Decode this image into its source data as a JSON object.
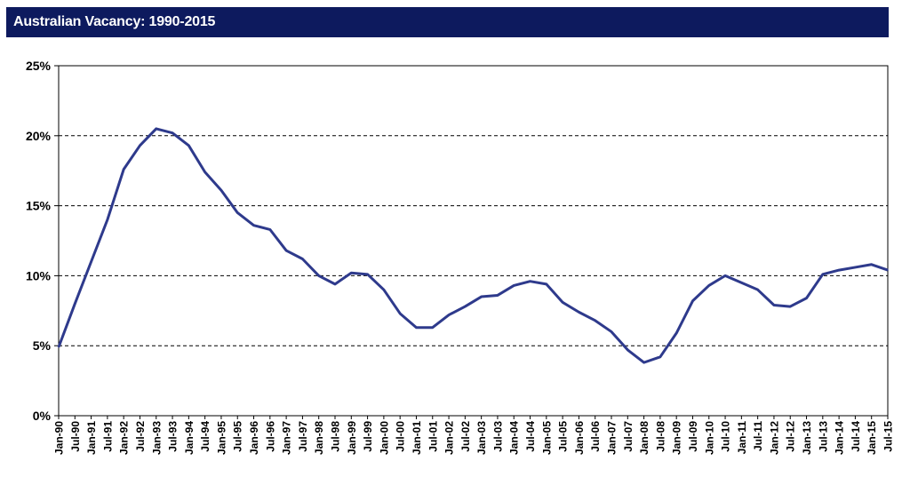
{
  "header": {
    "title": "Australian Vacancy: 1990-2015"
  },
  "chart_data": {
    "type": "line",
    "title": "Australian Vacancy: 1990-2015",
    "xlabel": "",
    "ylabel": "",
    "ylim": [
      0,
      25
    ],
    "yticks": [
      "0%",
      "5%",
      "10%",
      "15%",
      "20%",
      "25%"
    ],
    "ytick_values": [
      0,
      5,
      10,
      15,
      20,
      25
    ],
    "grid": "horizontal dashed",
    "line_color": "#2e3a8c",
    "categories": [
      "Jan-90",
      "Jul-90",
      "Jan-91",
      "Jul-91",
      "Jan-92",
      "Jul-92",
      "Jan-93",
      "Jul-93",
      "Jan-94",
      "Jul-94",
      "Jan-95",
      "Jul-95",
      "Jan-96",
      "Jul-96",
      "Jan-97",
      "Jul-97",
      "Jan-98",
      "Jul-98",
      "Jan-99",
      "Jul-99",
      "Jan-00",
      "Jul-00",
      "Jan-01",
      "Jul-01",
      "Jan-02",
      "Jul-02",
      "Jan-03",
      "Jul-03",
      "Jan-04",
      "Jul-04",
      "Jan-05",
      "Jul-05",
      "Jan-06",
      "Jul-06",
      "Jan-07",
      "Jul-07",
      "Jan-08",
      "Jul-08",
      "Jan-09",
      "Jul-09",
      "Jan-10",
      "Jul-10",
      "Jan-11",
      "Jul-11",
      "Jan-12",
      "Jul-12",
      "Jan-13",
      "Jul-13",
      "Jan-14",
      "Jul-14",
      "Jan-15",
      "Jul-15"
    ],
    "series": [
      {
        "values": [
          4.9,
          8.0,
          11.0,
          14.0,
          17.6,
          19.3,
          20.5,
          20.2,
          19.3,
          17.4,
          16.1,
          14.5,
          13.6,
          13.3,
          11.8,
          11.2,
          10.0,
          9.4,
          10.2,
          10.1,
          9.0,
          7.3,
          6.3,
          6.3,
          7.2,
          7.8,
          8.5,
          8.6,
          9.3,
          9.6,
          9.4,
          8.1,
          7.4,
          6.8,
          6.0,
          4.7,
          3.8,
          4.2,
          5.9,
          8.2,
          9.3,
          10.0,
          9.5,
          9.0,
          7.9,
          7.8,
          8.4,
          10.1,
          10.4,
          10.6,
          10.8,
          10.4
        ]
      }
    ]
  }
}
